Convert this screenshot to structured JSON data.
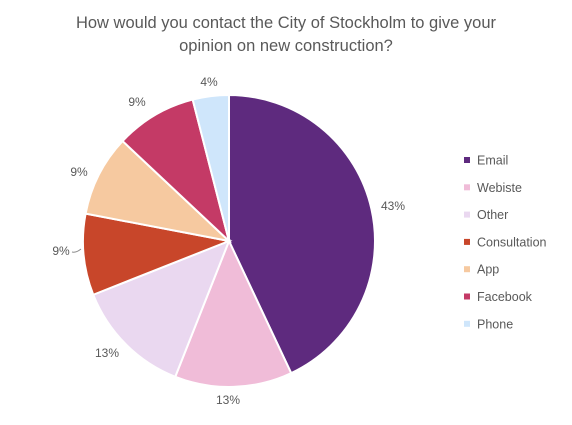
{
  "chart_data": {
    "type": "pie",
    "title_lines": [
      "How would you contact the City of Stockholm to give your",
      "opinion on new construction?"
    ],
    "legend_position": "right",
    "slices": [
      {
        "name": "Email",
        "value": 43,
        "label": "43%",
        "color": "#5e2a7e"
      },
      {
        "name": "Webiste",
        "value": 13,
        "label": "13%",
        "color": "#f0bcd8"
      },
      {
        "name": "Other",
        "value": 13,
        "label": "13%",
        "color": "#ead8f0"
      },
      {
        "name": "Consultation",
        "value": 9,
        "label": "9%",
        "color": "#c8462a"
      },
      {
        "name": "App",
        "value": 9,
        "label": "9%",
        "color": "#f6c9a0"
      },
      {
        "name": "Facebook",
        "value": 9,
        "label": "9%",
        "color": "#c43a66"
      },
      {
        "name": "Phone",
        "value": 4,
        "label": "4%",
        "color": "#cfe6fb"
      }
    ]
  }
}
